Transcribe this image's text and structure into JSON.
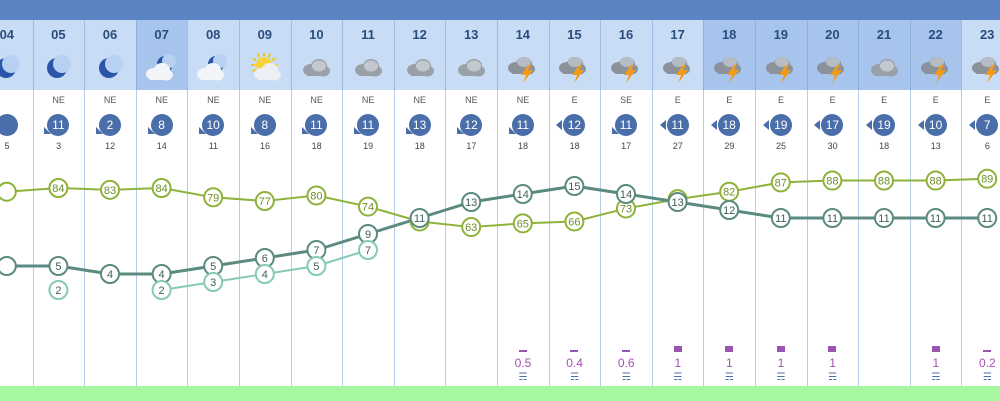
{
  "hours": [
    "04",
    "05",
    "06",
    "07",
    "08",
    "09",
    "10",
    "11",
    "12",
    "13",
    "14",
    "15",
    "16",
    "17",
    "18",
    "19",
    "20",
    "21",
    "22",
    "23"
  ],
  "weather_icons": [
    "moon-icon",
    "moon-icon",
    "moon-icon",
    "moon-cloud-icon",
    "moon-cloud-icon",
    "sun-cloud-icon",
    "cloud-icon",
    "cloud-icon",
    "cloud-icon",
    "cloud-icon",
    "thunderstorm-icon",
    "thunderstorm-icon",
    "thunderstorm-icon",
    "thunderstorm-icon",
    "thunderstorm-icon",
    "thunderstorm-icon",
    "thunderstorm-icon",
    "cloud-icon",
    "thunderstorm-icon",
    "thunderstorm-icon"
  ],
  "wind": {
    "directions": [
      "",
      "NE",
      "NE",
      "NE",
      "NE",
      "NE",
      "NE",
      "NE",
      "NE",
      "NE",
      "NE",
      "E",
      "SE",
      "E",
      "E",
      "E",
      "E",
      "E",
      "E",
      "E"
    ],
    "speeds": [
      "",
      "11",
      "2",
      "8",
      "10",
      "8",
      "11",
      "11",
      "13",
      "12",
      "11",
      "12",
      "11",
      "11",
      "18",
      "19",
      "17",
      "19",
      "10",
      "7"
    ],
    "gusts": [
      "5",
      "3",
      "12",
      "14",
      "11",
      "16",
      "18",
      "19",
      "18",
      "17",
      "18",
      "18",
      "17",
      "27",
      "29",
      "25",
      "30",
      "18",
      "13",
      "6"
    ]
  },
  "chart_data": {
    "type": "line",
    "x": [
      "04",
      "05",
      "06",
      "07",
      "08",
      "09",
      "10",
      "11",
      "12",
      "13",
      "14",
      "15",
      "16",
      "17",
      "18",
      "19",
      "20",
      "21",
      "22",
      "23"
    ],
    "series": [
      {
        "values": [
          82,
          84,
          83,
          84,
          79,
          77,
          80,
          74,
          66,
          63,
          65,
          66,
          73,
          78,
          82,
          87,
          88,
          88,
          88,
          89
        ],
        "color": "#8db33a"
      },
      {
        "values": [
          5,
          5,
          4,
          4,
          5,
          6,
          7,
          9,
          11,
          13,
          14,
          15,
          14,
          13,
          12,
          11,
          11,
          11,
          11,
          11
        ],
        "color": "#5b8a80"
      },
      {
        "values": [
          null,
          2,
          null,
          2,
          3,
          4,
          5,
          7,
          null,
          null,
          null,
          null,
          null,
          null,
          null,
          null,
          null,
          null,
          null,
          null
        ],
        "color": "#86c9b6"
      }
    ],
    "labels_shown": {
      "series0": [
        null,
        "84",
        "83",
        "84",
        "79",
        "77",
        "80",
        "74",
        "66",
        "63",
        "65",
        "66",
        "73",
        "78",
        "82",
        "87",
        "88",
        "88",
        "88",
        "89"
      ],
      "series1": [
        null,
        "5",
        "4",
        "4",
        "5",
        "6",
        "7",
        "9",
        "11",
        "13",
        "14",
        "15",
        "14",
        "13",
        "12",
        "11",
        "11",
        "11",
        "11",
        "11"
      ],
      "series2": [
        null,
        "2",
        null,
        "2",
        "3",
        "4",
        "5",
        "7",
        null,
        null,
        null,
        null,
        null,
        null,
        null,
        null,
        null,
        null,
        null,
        null
      ]
    }
  },
  "rain": {
    "values": [
      "",
      "",
      "",
      "",
      "",
      "",
      "",
      "",
      "",
      "",
      "0.5",
      "0.4",
      "0.6",
      "1",
      "1",
      "1",
      "1",
      "",
      "1",
      "0.2"
    ]
  },
  "colors": {
    "top_bar": "#5b84c4",
    "header": "#c9dcf6",
    "badge": "#4a6ea9",
    "rain": "#a64fb5",
    "strip": "#a6f7a0"
  }
}
